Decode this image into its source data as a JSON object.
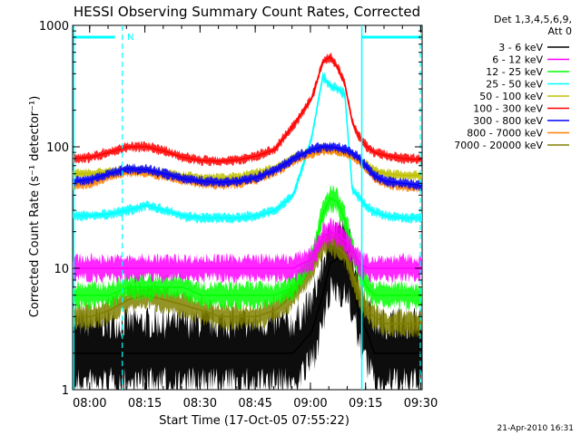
{
  "chart_data": {
    "type": "line",
    "title": "HESSI Observing Summary Count Rates, Corrected",
    "xlabel": "Start Time (17-Oct-05 07:55:22)",
    "ylabel": "Corrected Count Rate (s⁻¹ detector⁻¹)",
    "yscale": "log",
    "ylim": [
      1,
      1000
    ],
    "xlim_minutes": [
      0,
      95
    ],
    "x_ticks": [
      "08:00",
      "08:15",
      "08:30",
      "08:45",
      "09:00",
      "09:15",
      "09:30"
    ],
    "y_ticks": [
      "1",
      "10",
      "100",
      "1000"
    ],
    "legend_title": [
      "Det 1,3,4,5,6,9,",
      "Att 0"
    ],
    "legend_position": "right",
    "timestamp": "21-Apr-2010 16:31",
    "flag_label": "N",
    "x_sample_minutes": [
      0,
      5,
      10,
      15,
      20,
      25,
      30,
      35,
      40,
      45,
      50,
      55,
      60,
      65,
      68,
      70,
      72,
      74,
      76,
      78,
      80,
      82,
      85,
      90,
      95
    ],
    "series": [
      {
        "name": "3 - 6 keV",
        "color": "#000000",
        "values": [
          2,
          2,
          2,
          2,
          2,
          2,
          2,
          2,
          2,
          2,
          2,
          2,
          2,
          3,
          6,
          11,
          12,
          11,
          8,
          4,
          3,
          2,
          2,
          2,
          2
        ]
      },
      {
        "name": "6 - 12 keV",
        "color": "#ff00ff",
        "values": [
          10,
          10,
          10,
          10,
          10,
          10,
          10,
          10,
          10,
          10,
          10,
          10,
          10,
          12,
          18,
          20,
          19,
          17,
          14,
          11,
          10,
          10,
          10,
          10,
          10
        ]
      },
      {
        "name": "12 - 25 keV",
        "color": "#00ff00",
        "values": [
          6,
          6,
          6,
          7,
          7,
          7,
          7,
          6,
          6,
          6,
          6,
          6,
          7,
          12,
          28,
          38,
          35,
          25,
          14,
          9,
          7,
          6,
          6,
          6,
          6
        ]
      },
      {
        "name": "25 - 50 keV",
        "color": "#00ffff",
        "values": [
          27,
          27,
          28,
          30,
          33,
          30,
          27,
          26,
          26,
          26,
          27,
          30,
          40,
          120,
          380,
          320,
          300,
          270,
          45,
          38,
          32,
          29,
          27,
          26,
          26
        ]
      },
      {
        "name": "50 - 100 keV",
        "color": "#c0c000",
        "values": [
          60,
          60,
          62,
          64,
          63,
          60,
          57,
          55,
          55,
          56,
          60,
          66,
          80,
          92,
          97,
          96,
          93,
          90,
          85,
          78,
          70,
          64,
          60,
          58,
          58
        ]
      },
      {
        "name": "100 - 300 keV",
        "color": "#ff0000",
        "values": [
          80,
          82,
          90,
          100,
          100,
          92,
          82,
          77,
          76,
          78,
          84,
          95,
          150,
          250,
          500,
          550,
          450,
          330,
          160,
          120,
          100,
          90,
          85,
          80,
          78
        ]
      },
      {
        "name": "300 - 800 keV",
        "color": "#0000ff",
        "values": [
          52,
          54,
          60,
          66,
          65,
          60,
          55,
          52,
          51,
          52,
          56,
          64,
          80,
          95,
          100,
          100,
          98,
          95,
          90,
          80,
          68,
          58,
          52,
          50,
          48
        ]
      },
      {
        "name": "800 - 7000 keV",
        "color": "#ff8000",
        "values": [
          48,
          50,
          57,
          62,
          62,
          58,
          53,
          50,
          49,
          50,
          54,
          62,
          76,
          88,
          94,
          94,
          92,
          90,
          85,
          75,
          65,
          56,
          50,
          47,
          46
        ]
      },
      {
        "name": "7000 - 20000 keV",
        "color": "#808000",
        "values": [
          4,
          4,
          4.5,
          5.5,
          6,
          5.5,
          5,
          4.5,
          4,
          4,
          4,
          4.5,
          6,
          10,
          16,
          17,
          15,
          13,
          9,
          6,
          4.5,
          4,
          3.5,
          3.5,
          3.5
        ]
      }
    ]
  }
}
